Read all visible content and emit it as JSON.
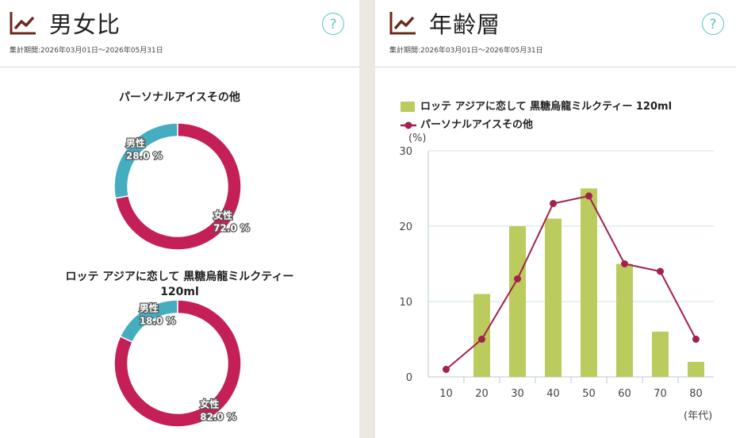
{
  "left_panel": {
    "title": "男女比",
    "period": "集計期間:2026年03月01日～2026年05月31日",
    "help": "?"
  },
  "right_panel": {
    "title": "年齢層",
    "period": "集計期間:2026年03月01日～2026年05月31日",
    "help": "?"
  },
  "colors": {
    "male": "#44adc0",
    "female": "#c41f56",
    "bar": "#bccb5e",
    "line": "#a3214b",
    "accent_icon": "#6b2a1d",
    "help": "#5bc0c4"
  },
  "chart_data": [
    {
      "type": "pie",
      "title": "パーソナルアイスその他",
      "slices": [
        {
          "name": "男性",
          "value": 28.0,
          "label": "28.0 %"
        },
        {
          "name": "女性",
          "value": 72.0,
          "label": "72.0 %"
        }
      ]
    },
    {
      "type": "pie",
      "title_line1": "ロッテ アジアに恋して 黒糖烏龍ミルクティー",
      "title_line2": "120ml",
      "slices": [
        {
          "name": "男性",
          "value": 18.0,
          "label": "18.0 %"
        },
        {
          "name": "女性",
          "value": 82.0,
          "label": "82.0 %"
        }
      ]
    },
    {
      "type": "bar",
      "categories": [
        "10",
        "20",
        "30",
        "40",
        "50",
        "60",
        "70",
        "80"
      ],
      "series": [
        {
          "name": "ロッテ アジアに恋して 黒糖烏龍ミルクティー 120ml",
          "kind": "bar",
          "values": [
            0,
            11,
            20,
            21,
            25,
            15,
            6,
            2
          ]
        },
        {
          "name": "パーソナルアイスその他",
          "kind": "line",
          "values": [
            1,
            5,
            13,
            23,
            24,
            15,
            14,
            5
          ]
        }
      ],
      "yunit": "(%)",
      "xunit": "(年代)",
      "ylim": [
        0,
        30
      ],
      "yticks": [
        "0",
        "10",
        "20",
        "30"
      ],
      "grid": true,
      "legend": "top-left"
    }
  ]
}
